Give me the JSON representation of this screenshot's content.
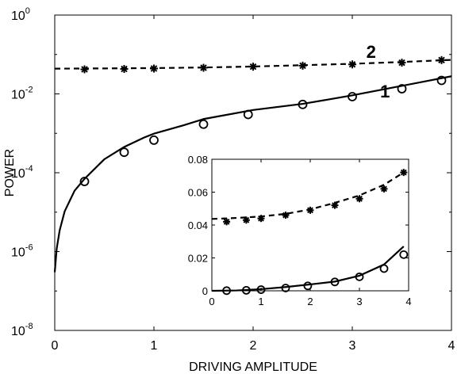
{
  "chart_data": [
    {
      "type": "line",
      "xlabel": "DRIVING AMPLITUDE",
      "ylabel": "POWER",
      "xlim": [
        0,
        4
      ],
      "ylim": [
        1e-08,
        1
      ],
      "yscale": "log",
      "grid": false,
      "x_ticks": [
        {
          "v": 0,
          "label": "0"
        },
        {
          "v": 1,
          "label": "1"
        },
        {
          "v": 2,
          "label": "2"
        },
        {
          "v": 3,
          "label": "3"
        },
        {
          "v": 4,
          "label": "4"
        }
      ],
      "y_ticks": [
        {
          "exp": 0,
          "base": "10",
          "sup": "0"
        },
        {
          "exp": -2,
          "base": "10",
          "sup": "-2"
        },
        {
          "exp": -4,
          "base": "10",
          "sup": "-4"
        },
        {
          "exp": -6,
          "base": "10",
          "sup": "-6"
        },
        {
          "exp": -8,
          "base": "10",
          "sup": "-8"
        }
      ],
      "annotations": [
        {
          "text": "2",
          "x": 3.19,
          "y": 0.083
        },
        {
          "text": "1",
          "x": 3.33,
          "y": 0.0081
        }
      ],
      "series": [
        {
          "style": "dashed",
          "x": [
            0,
            0.5,
            1,
            1.5,
            2,
            2.5,
            3,
            3.5,
            4
          ],
          "y": [
            0.0437,
            0.0443,
            0.0452,
            0.0468,
            0.0495,
            0.0535,
            0.058,
            0.0645,
            0.073
          ]
        },
        {
          "style": "solid",
          "x": [
            0,
            0.02,
            0.05,
            0.1,
            0.2,
            0.3,
            0.5,
            0.7,
            0.9,
            1.0,
            1.3,
            1.5,
            2.0,
            2.5,
            2.8,
            3.0,
            3.5,
            4.0
          ],
          "y": [
            3e-07,
            1.2e-06,
            3.5e-06,
            1.05e-05,
            3.5e-05,
            7e-05,
            0.00022,
            0.00045,
            0.00078,
            0.00098,
            0.0016,
            0.0023,
            0.0039,
            0.0056,
            0.0075,
            0.0092,
            0.016,
            0.028
          ]
        },
        {
          "style": "markers-asterisk",
          "x": [
            0.3,
            0.7,
            1.0,
            1.5,
            2.0,
            2.5,
            3.0,
            3.5,
            3.9
          ],
          "y": [
            0.042,
            0.043,
            0.044,
            0.046,
            0.049,
            0.052,
            0.056,
            0.062,
            0.072
          ]
        },
        {
          "style": "markers-circle",
          "x": [
            0.3,
            0.7,
            1.0,
            1.5,
            1.95,
            2.5,
            3.0,
            3.5,
            3.9
          ],
          "y": [
            6e-05,
            0.00033,
            0.00067,
            0.0017,
            0.003,
            0.0054,
            0.0085,
            0.0135,
            0.022
          ]
        }
      ]
    },
    {
      "type": "line",
      "inset": true,
      "xlim": [
        0,
        4
      ],
      "ylim": [
        0,
        0.08
      ],
      "yscale": "linear",
      "grid": false,
      "x_ticks": [
        {
          "v": 0,
          "label": "0"
        },
        {
          "v": 1,
          "label": "1"
        },
        {
          "v": 2,
          "label": "2"
        },
        {
          "v": 3,
          "label": "3"
        },
        {
          "v": 4,
          "label": "4"
        }
      ],
      "y_ticks": [
        {
          "v": 0,
          "label": "0"
        },
        {
          "v": 0.02,
          "label": "0.02"
        },
        {
          "v": 0.04,
          "label": "0.04"
        },
        {
          "v": 0.06,
          "label": "0.06"
        },
        {
          "v": 0.08,
          "label": "0.08"
        }
      ],
      "series": [
        {
          "style": "dashed",
          "x": [
            0,
            0.5,
            1,
            1.5,
            2,
            2.5,
            3,
            3.5,
            3.9
          ],
          "y": [
            0.0437,
            0.0443,
            0.0452,
            0.0468,
            0.0495,
            0.0535,
            0.058,
            0.0645,
            0.072
          ]
        },
        {
          "style": "solid",
          "x": [
            0,
            0.5,
            1.0,
            1.5,
            2.0,
            2.5,
            3.0,
            3.5,
            3.9
          ],
          "y": [
            0,
            0.0002,
            0.001,
            0.0023,
            0.0039,
            0.0056,
            0.0092,
            0.016,
            0.027
          ]
        },
        {
          "style": "markers-asterisk",
          "x": [
            0.3,
            0.7,
            1.0,
            1.5,
            2.0,
            2.5,
            3.0,
            3.5,
            3.9
          ],
          "y": [
            0.042,
            0.043,
            0.044,
            0.046,
            0.049,
            0.052,
            0.056,
            0.062,
            0.072
          ]
        },
        {
          "style": "markers-circle",
          "x": [
            0.3,
            0.7,
            1.0,
            1.5,
            1.95,
            2.5,
            3.0,
            3.5,
            3.9
          ],
          "y": [
            0.0001,
            0.0003,
            0.0007,
            0.0017,
            0.003,
            0.0054,
            0.0085,
            0.0135,
            0.022
          ]
        }
      ]
    }
  ]
}
